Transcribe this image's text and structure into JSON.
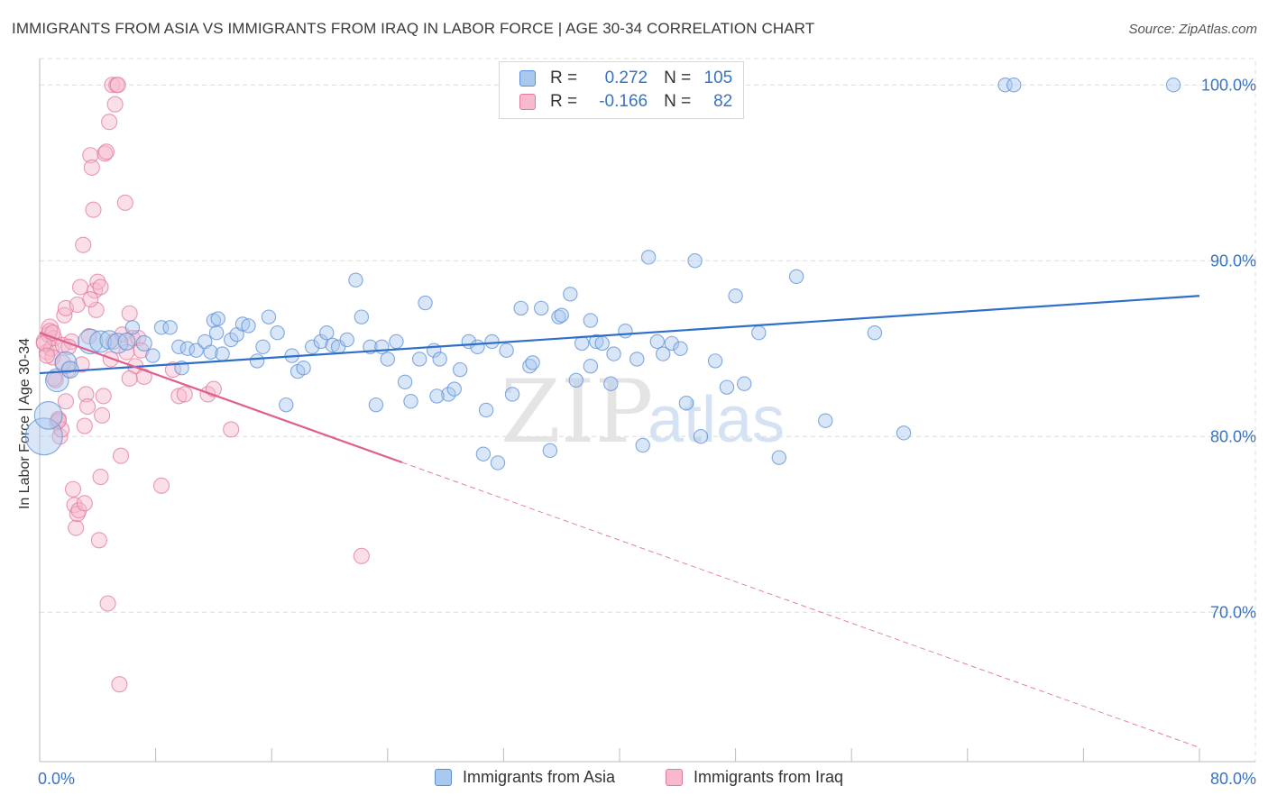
{
  "title": "IMMIGRANTS FROM ASIA VS IMMIGRANTS FROM IRAQ IN LABOR FORCE | AGE 30-34 CORRELATION CHART",
  "source": "Source: ZipAtlas.com",
  "watermark": {
    "zip": "ZIP",
    "atlas": "atlas"
  },
  "legend_top": {
    "r_label": "R =",
    "n_label": "N =",
    "rows": [
      {
        "r": "0.272",
        "n": "105"
      },
      {
        "r": "-0.166",
        "n": "82"
      }
    ]
  },
  "colors": {
    "asia_fill": "#a9c8ee",
    "asia_stroke": "#5b8fd6",
    "asia_line": "#2f6fc9",
    "iraq_fill": "#f7b9cd",
    "iraq_stroke": "#e07a9e",
    "iraq_line": "#e0608d",
    "tick_label": "#3873c4",
    "grid": "#dcdcdc"
  },
  "chart_data": {
    "type": "scatter",
    "title": "IMMIGRANTS FROM ASIA VS IMMIGRANTS FROM IRAQ IN LABOR FORCE | AGE 30-34 CORRELATION CHART",
    "xlabel": "",
    "ylabel": "In Labor Force | Age 30-34",
    "xlim": [
      0,
      80
    ],
    "ylim": [
      61.5,
      101.5
    ],
    "x_tick_labels": [
      "0.0%",
      "80.0%"
    ],
    "y_ticks": [
      70,
      80,
      90,
      100
    ],
    "y_tick_labels": [
      "70.0%",
      "80.0%",
      "90.0%",
      "100.0%"
    ],
    "grid": true,
    "legend": "bottom-center",
    "series": [
      {
        "name": "Immigrants from Asia",
        "R": 0.272,
        "N": 105,
        "trend": {
          "x": [
            0,
            80
          ],
          "y": [
            83.6,
            88.0
          ],
          "dashed_x": null
        },
        "points": [
          [
            0.3,
            80.0,
            2.4
          ],
          [
            0.6,
            81.2,
            1.8
          ],
          [
            1.2,
            83.2,
            1.5
          ],
          [
            1.8,
            84.2,
            1.4
          ],
          [
            2.1,
            83.8,
            1.1
          ],
          [
            3.5,
            85.4,
            1.6
          ],
          [
            4.2,
            85.4,
            1.4
          ],
          [
            4.8,
            85.5,
            1.2
          ],
          [
            5.4,
            85.3,
            1.3
          ],
          [
            6.0,
            85.4,
            1.1
          ],
          [
            6.4,
            86.2,
            0.9
          ],
          [
            7.2,
            85.3,
            1.0
          ],
          [
            7.8,
            84.6,
            0.9
          ],
          [
            8.4,
            86.2,
            0.9
          ],
          [
            9.0,
            86.2,
            0.9
          ],
          [
            9.6,
            85.1,
            0.9
          ],
          [
            10.2,
            85.0,
            0.9
          ],
          [
            10.8,
            84.9,
            0.9
          ],
          [
            11.4,
            85.4,
            0.9
          ],
          [
            11.8,
            84.8,
            0.9
          ],
          [
            12.0,
            86.6,
            0.9
          ],
          [
            12.3,
            86.7,
            0.9
          ],
          [
            12.6,
            84.7,
            0.9
          ],
          [
            13.2,
            85.5,
            0.9
          ],
          [
            13.6,
            85.8,
            0.9
          ],
          [
            14.0,
            86.4,
            0.9
          ],
          [
            14.4,
            86.3,
            0.9
          ],
          [
            15.0,
            84.3,
            0.9
          ],
          [
            15.4,
            85.1,
            0.9
          ],
          [
            15.8,
            86.8,
            0.9
          ],
          [
            16.4,
            85.9,
            0.9
          ],
          [
            17.0,
            81.8,
            0.9
          ],
          [
            17.4,
            84.6,
            0.9
          ],
          [
            17.8,
            83.7,
            0.9
          ],
          [
            18.2,
            83.9,
            0.9
          ],
          [
            18.8,
            85.1,
            0.9
          ],
          [
            19.4,
            85.4,
            0.9
          ],
          [
            19.8,
            85.9,
            0.9
          ],
          [
            20.2,
            85.2,
            0.9
          ],
          [
            20.6,
            85.1,
            0.9
          ],
          [
            21.2,
            85.5,
            0.9
          ],
          [
            21.8,
            88.9,
            0.9
          ],
          [
            22.2,
            86.8,
            0.9
          ],
          [
            22.8,
            85.1,
            0.9
          ],
          [
            23.2,
            81.8,
            0.9
          ],
          [
            23.6,
            85.1,
            0.9
          ],
          [
            24.0,
            84.4,
            0.9
          ],
          [
            24.6,
            85.4,
            0.9
          ],
          [
            25.2,
            83.1,
            0.9
          ],
          [
            25.6,
            82.0,
            0.9
          ],
          [
            26.2,
            84.4,
            0.9
          ],
          [
            26.6,
            87.6,
            0.9
          ],
          [
            27.2,
            84.9,
            0.9
          ],
          [
            27.6,
            84.4,
            0.9
          ],
          [
            28.2,
            82.4,
            0.9
          ],
          [
            28.6,
            82.7,
            0.9
          ],
          [
            29.0,
            83.8,
            0.9
          ],
          [
            29.6,
            85.4,
            0.9
          ],
          [
            30.2,
            85.1,
            0.9
          ],
          [
            30.6,
            79.0,
            0.9
          ],
          [
            30.8,
            81.5,
            0.9
          ],
          [
            31.2,
            85.4,
            0.9
          ],
          [
            31.6,
            78.5,
            0.9
          ],
          [
            32.2,
            84.9,
            0.9
          ],
          [
            32.6,
            82.4,
            0.9
          ],
          [
            33.2,
            87.3,
            0.9
          ],
          [
            33.8,
            84.0,
            0.9
          ],
          [
            34.0,
            84.2,
            0.9
          ],
          [
            34.6,
            87.3,
            0.9
          ],
          [
            35.2,
            79.2,
            0.9
          ],
          [
            35.8,
            86.8,
            0.9
          ],
          [
            36.0,
            86.9,
            0.9
          ],
          [
            36.6,
            88.1,
            0.9
          ],
          [
            37.0,
            83.2,
            0.9
          ],
          [
            37.4,
            85.3,
            0.9
          ],
          [
            38.0,
            84.0,
            0.9
          ],
          [
            38.4,
            85.4,
            0.9
          ],
          [
            38.8,
            85.3,
            0.9
          ],
          [
            39.4,
            83.0,
            0.9
          ],
          [
            39.6,
            84.7,
            0.9
          ],
          [
            40.4,
            86.0,
            0.9
          ],
          [
            41.2,
            84.4,
            0.9
          ],
          [
            41.6,
            79.5,
            0.9
          ],
          [
            42.0,
            90.2,
            0.9
          ],
          [
            42.6,
            85.4,
            0.9
          ],
          [
            43.0,
            84.7,
            0.9
          ],
          [
            43.6,
            85.3,
            0.9
          ],
          [
            44.2,
            85.0,
            0.9
          ],
          [
            44.6,
            81.9,
            0.9
          ],
          [
            45.2,
            90.0,
            0.9
          ],
          [
            45.6,
            80.0,
            0.9
          ],
          [
            46.6,
            84.3,
            0.9
          ],
          [
            47.4,
            82.8,
            0.9
          ],
          [
            48.0,
            88.0,
            0.9
          ],
          [
            49.6,
            85.9,
            0.9
          ],
          [
            51.0,
            78.8,
            0.9
          ],
          [
            52.2,
            89.1,
            0.9
          ],
          [
            54.2,
            80.9,
            0.9
          ],
          [
            57.6,
            85.9,
            0.9
          ],
          [
            59.6,
            80.2,
            0.9
          ],
          [
            66.6,
            100.0,
            0.9
          ],
          [
            67.2,
            100.0,
            0.9
          ],
          [
            78.2,
            100.0,
            0.9
          ],
          [
            48.6,
            83.0,
            0.9
          ],
          [
            38.0,
            86.6,
            0.9
          ],
          [
            27.4,
            82.3,
            0.9
          ],
          [
            12.2,
            85.9,
            0.9
          ],
          [
            9.8,
            83.9,
            0.9
          ]
        ]
      },
      {
        "name": "Immigrants from Iraq",
        "R": -0.166,
        "N": 82,
        "trend": {
          "x": [
            0,
            80
          ],
          "y": [
            85.9,
            62.3
          ],
          "dashed_x": 25.0
        },
        "points": [
          [
            0.4,
            85.4,
            1.2
          ],
          [
            0.5,
            84.8,
            1.0
          ],
          [
            0.6,
            85.8,
            1.0
          ],
          [
            0.7,
            86.2,
            1.1
          ],
          [
            0.8,
            85.0,
            1.0
          ],
          [
            0.9,
            84.5,
            1.0
          ],
          [
            1.0,
            85.6,
            1.0
          ],
          [
            1.1,
            83.2,
            1.0
          ],
          [
            1.2,
            80.8,
            1.0
          ],
          [
            1.3,
            81.0,
            1.0
          ],
          [
            1.4,
            80.0,
            1.0
          ],
          [
            1.5,
            80.4,
            1.0
          ],
          [
            1.6,
            85.2,
            1.0
          ],
          [
            1.7,
            86.9,
            1.0
          ],
          [
            1.8,
            87.3,
            1.0
          ],
          [
            2.0,
            83.8,
            1.0
          ],
          [
            2.2,
            85.4,
            1.0
          ],
          [
            2.3,
            77.0,
            1.0
          ],
          [
            2.4,
            76.1,
            1.0
          ],
          [
            2.5,
            74.8,
            1.0
          ],
          [
            2.6,
            75.6,
            1.0
          ],
          [
            2.7,
            75.8,
            1.0
          ],
          [
            2.8,
            88.5,
            1.0
          ],
          [
            2.9,
            84.1,
            1.0
          ],
          [
            3.0,
            90.9,
            1.0
          ],
          [
            3.1,
            76.2,
            1.0
          ],
          [
            3.2,
            82.4,
            1.0
          ],
          [
            3.3,
            81.7,
            1.0
          ],
          [
            3.4,
            85.7,
            1.0
          ],
          [
            3.5,
            96.0,
            1.0
          ],
          [
            3.6,
            95.3,
            1.0
          ],
          [
            3.7,
            92.9,
            1.0
          ],
          [
            3.8,
            88.3,
            1.0
          ],
          [
            3.9,
            87.2,
            1.0
          ],
          [
            4.0,
            88.8,
            1.0
          ],
          [
            4.1,
            74.1,
            1.0
          ],
          [
            4.2,
            77.7,
            1.0
          ],
          [
            4.3,
            81.2,
            1.0
          ],
          [
            4.4,
            82.3,
            1.0
          ],
          [
            4.5,
            96.1,
            1.0
          ],
          [
            4.6,
            96.2,
            1.0
          ],
          [
            4.7,
            70.5,
            1.0
          ],
          [
            4.8,
            97.9,
            1.0
          ],
          [
            4.9,
            84.4,
            1.0
          ],
          [
            5.0,
            100.0,
            1.0
          ],
          [
            5.1,
            85.4,
            1.0
          ],
          [
            5.2,
            98.9,
            1.0
          ],
          [
            5.3,
            100.0,
            1.0
          ],
          [
            5.4,
            100.0,
            1.0
          ],
          [
            5.5,
            65.9,
            1.0
          ],
          [
            5.6,
            78.9,
            1.0
          ],
          [
            5.7,
            85.8,
            1.0
          ],
          [
            5.9,
            93.3,
            1.0
          ],
          [
            6.0,
            84.8,
            1.0
          ],
          [
            6.2,
            87.0,
            1.0
          ],
          [
            6.4,
            85.6,
            1.0
          ],
          [
            6.6,
            84.0,
            1.0
          ],
          [
            6.8,
            85.6,
            1.0
          ],
          [
            7.0,
            84.9,
            1.0
          ],
          [
            7.2,
            83.4,
            1.0
          ],
          [
            8.4,
            77.2,
            1.0
          ],
          [
            9.2,
            83.8,
            1.0
          ],
          [
            9.6,
            82.3,
            1.0
          ],
          [
            10.0,
            82.4,
            1.0
          ],
          [
            11.6,
            82.4,
            1.0
          ],
          [
            12.0,
            82.7,
            1.0
          ],
          [
            13.2,
            80.4,
            1.0
          ],
          [
            22.2,
            73.2,
            1.0
          ],
          [
            0.3,
            85.3,
            1.0
          ],
          [
            0.5,
            84.6,
            1.0
          ],
          [
            0.7,
            86.0,
            1.0
          ],
          [
            1.0,
            83.3,
            1.0
          ],
          [
            1.3,
            80.9,
            1.0
          ],
          [
            2.0,
            85.1,
            1.0
          ],
          [
            3.5,
            87.8,
            1.0
          ],
          [
            4.2,
            88.5,
            1.0
          ],
          [
            6.2,
            83.3,
            1.0
          ],
          [
            1.6,
            84.2,
            1.0
          ],
          [
            2.6,
            87.5,
            1.0
          ],
          [
            0.9,
            85.9,
            1.0
          ],
          [
            1.8,
            82.0,
            1.0
          ],
          [
            3.1,
            80.6,
            1.0
          ]
        ]
      }
    ]
  }
}
